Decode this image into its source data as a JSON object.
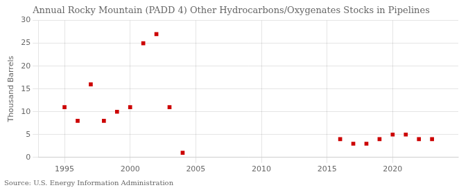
{
  "chart_data": {
    "type": "scatter",
    "title": "Annual Rocky Mountain (PADD 4) Other Hydrocarbons/Oxygenates Stocks in Pipelines",
    "ylabel": "Thousand Barrels",
    "source": "Source: U.S. Energy Information Administration",
    "x": [
      1995,
      1996,
      1997,
      1998,
      1999,
      2000,
      2001,
      2002,
      2003,
      2004,
      2016,
      2017,
      2018,
      2019,
      2020,
      2021,
      2022,
      2023
    ],
    "values": [
      11,
      8,
      16,
      8,
      10,
      11,
      25,
      27,
      11,
      1,
      4,
      3,
      3,
      4,
      5,
      5,
      4,
      4
    ],
    "color": "#cc0000",
    "marker": "square",
    "xlim": [
      1993,
      2025
    ],
    "xticks": [
      1995,
      2000,
      2005,
      2010,
      2015,
      2020
    ],
    "ylim": [
      0,
      30
    ],
    "yticks": [
      0,
      5,
      10,
      15,
      20,
      25,
      30
    ],
    "grid": true
  }
}
